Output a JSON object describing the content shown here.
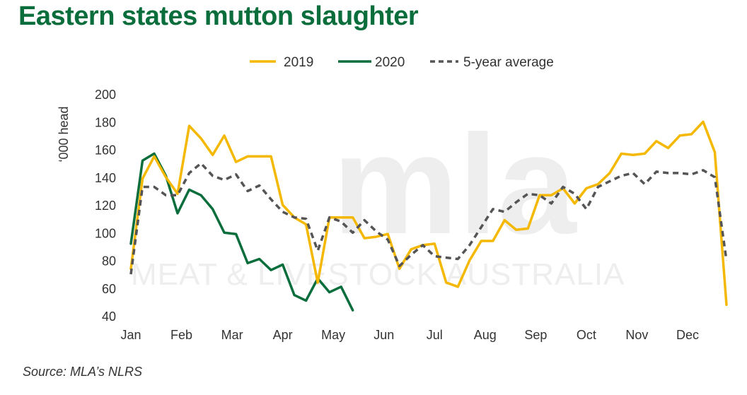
{
  "title": "Eastern states mutton slaughter",
  "source": "Source: MLA’s NLRS",
  "colors": {
    "title": "#0a6e3c",
    "2019": "#f5b800",
    "2020": "#0a6e3c",
    "avg": "#555555",
    "watermark": "#eeeeee"
  },
  "watermark": {
    "logo": "mla",
    "text": "MEAT & LIVESTOCK AUSTRALIA"
  },
  "chart_data": {
    "type": "line",
    "ylabel": "‘000 head",
    "ylim": [
      40,
      200
    ],
    "yticks": [
      40,
      60,
      80,
      100,
      120,
      140,
      160,
      180,
      200
    ],
    "month_labels": [
      "Jan",
      "Feb",
      "Mar",
      "Apr",
      "May",
      "Jun",
      "Jul",
      "Aug",
      "Sep",
      "Oct",
      "Nov",
      "Dec"
    ],
    "x_unit": "week",
    "legend_position": "top",
    "grid": false,
    "series": [
      {
        "name": "2019",
        "style": "solid",
        "values": [
          74,
          139,
          155,
          140,
          128,
          177,
          168,
          156,
          170,
          151,
          155,
          155,
          155,
          120,
          111,
          106,
          64,
          111,
          111,
          111,
          96,
          97,
          99,
          74,
          88,
          91,
          92,
          64,
          61,
          80,
          94,
          94,
          109,
          102,
          103,
          127,
          127,
          132,
          121,
          132,
          135,
          143,
          157,
          156,
          157,
          166,
          161,
          170,
          171,
          180,
          158,
          48
        ]
      },
      {
        "name": "2020",
        "style": "solid",
        "values": [
          92,
          152,
          157,
          141,
          114,
          131,
          127,
          117,
          100,
          99,
          78,
          81,
          73,
          77,
          55,
          51,
          67,
          57,
          61,
          44
        ]
      },
      {
        "name": "5-year average",
        "style": "dashed",
        "values": [
          70,
          133,
          133,
          127,
          127,
          143,
          150,
          141,
          138,
          142,
          130,
          134,
          124,
          115,
          111,
          110,
          87,
          111,
          108,
          100,
          109,
          101,
          95,
          76,
          84,
          91,
          83,
          82,
          81,
          91,
          104,
          117,
          115,
          122,
          128,
          127,
          121,
          133,
          128,
          117,
          133,
          137,
          141,
          143,
          135,
          144,
          143,
          143,
          142,
          145,
          140,
          80
        ]
      }
    ]
  }
}
